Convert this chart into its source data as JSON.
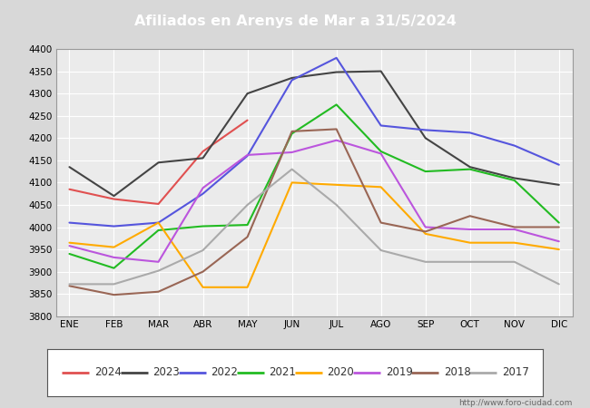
{
  "title": "Afiliados en Arenys de Mar a 31/5/2024",
  "title_color": "#ffffff",
  "title_bg_color": "#4a6fa5",
  "months": [
    "ENE",
    "FEB",
    "MAR",
    "ABR",
    "MAY",
    "JUN",
    "JUL",
    "AGO",
    "SEP",
    "OCT",
    "NOV",
    "DIC"
  ],
  "series": {
    "2024": {
      "color": "#e05050",
      "data": [
        4085,
        4063,
        4052,
        4170,
        4240,
        null,
        null,
        null,
        null,
        null,
        null,
        null
      ]
    },
    "2023": {
      "color": "#444444",
      "data": [
        4135,
        4070,
        4145,
        4155,
        4300,
        4335,
        4348,
        4350,
        4200,
        4135,
        4110,
        4095
      ]
    },
    "2022": {
      "color": "#5555dd",
      "data": [
        4010,
        4002,
        4010,
        4075,
        4160,
        4330,
        4380,
        4228,
        4218,
        4212,
        4183,
        4140
      ]
    },
    "2021": {
      "color": "#22bb22",
      "data": [
        3940,
        3908,
        3993,
        4002,
        4005,
        4210,
        4275,
        4170,
        4125,
        4130,
        4105,
        4010
      ]
    },
    "2020": {
      "color": "#ffaa00",
      "data": [
        3965,
        3955,
        4010,
        3865,
        3865,
        4100,
        4095,
        4090,
        3985,
        3965,
        3965,
        3950
      ]
    },
    "2019": {
      "color": "#bb55dd",
      "data": [
        3958,
        3932,
        3922,
        4088,
        4162,
        4168,
        4195,
        4165,
        4000,
        3995,
        3995,
        3968
      ]
    },
    "2018": {
      "color": "#996655",
      "data": [
        3868,
        3848,
        3855,
        3900,
        3978,
        4215,
        4220,
        4010,
        3990,
        4025,
        4000,
        4000
      ]
    },
    "2017": {
      "color": "#aaaaaa",
      "data": [
        3872,
        3872,
        3902,
        3948,
        4050,
        4130,
        4050,
        3948,
        3922,
        3922,
        3922,
        3872
      ]
    }
  },
  "ylim": [
    3800,
    4400
  ],
  "yticks": [
    3800,
    3850,
    3900,
    3950,
    4000,
    4050,
    4100,
    4150,
    4200,
    4250,
    4300,
    4350,
    4400
  ],
  "plot_bg_color": "#ebebeb",
  "grid_color": "#ffffff",
  "outer_bg_color": "#d8d8d8",
  "footer_text": "http://www.foro-ciudad.com"
}
